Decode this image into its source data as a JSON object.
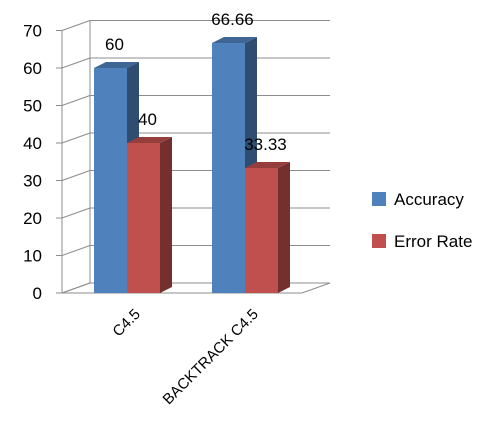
{
  "chart_data": {
    "type": "bar",
    "categories": [
      "C4.5",
      "BACKTRACK C4.5"
    ],
    "series": [
      {
        "name": "Accuracy",
        "values": [
          60,
          66.66
        ],
        "labels": [
          "60",
          "66.66"
        ],
        "color": "#4F81BD"
      },
      {
        "name": "Error Rate",
        "values": [
          40,
          33.33
        ],
        "labels": [
          "40",
          "33.33"
        ],
        "color": "#C0504D"
      }
    ],
    "yticks": [
      0,
      10,
      20,
      30,
      40,
      50,
      60,
      70
    ],
    "ylim": [
      0,
      70
    ],
    "grid": true,
    "style": "3d-column",
    "legend": "right",
    "title": "",
    "xlabel": "",
    "ylabel": ""
  }
}
